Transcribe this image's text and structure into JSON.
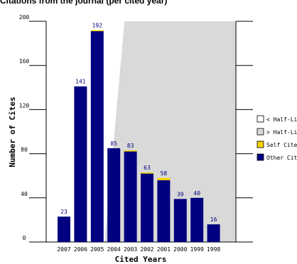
{
  "header": {
    "title": "Citations from the journal (per cited year)"
  },
  "chart_data": {
    "type": "bar",
    "title": "",
    "xlabel": "Cited Years",
    "ylabel": "Number of Cites",
    "ylim": [
      0,
      200
    ],
    "yticks": [
      0,
      40,
      80,
      120,
      160,
      200
    ],
    "ytick_labels": [
      "0",
      "40",
      "80",
      "120",
      "160",
      "200"
    ],
    "grid": false,
    "legend_position": "right",
    "categories": [
      "2007",
      "2006",
      "2005",
      "2004",
      "2003",
      "2002",
      "2001",
      "2000",
      "1999",
      "1998"
    ],
    "totals": [
      23,
      141,
      192,
      85,
      83,
      63,
      58,
      39,
      40,
      16
    ],
    "series": [
      {
        "name": "Self Cites",
        "color": "#f2d300",
        "values": [
          0,
          0,
          1,
          0,
          1,
          1,
          2,
          0,
          0,
          0
        ]
      },
      {
        "name": "Other Cites",
        "color": "#000080",
        "values": [
          23,
          141,
          191,
          85,
          82,
          62,
          56,
          39,
          40,
          16
        ]
      }
    ],
    "half_life": {
      "value": 3.3,
      "below_label": "< Half-Life",
      "above_label": "> Half-Life",
      "below_color": "#ffffff",
      "above_color": "#d9d9d9"
    }
  }
}
